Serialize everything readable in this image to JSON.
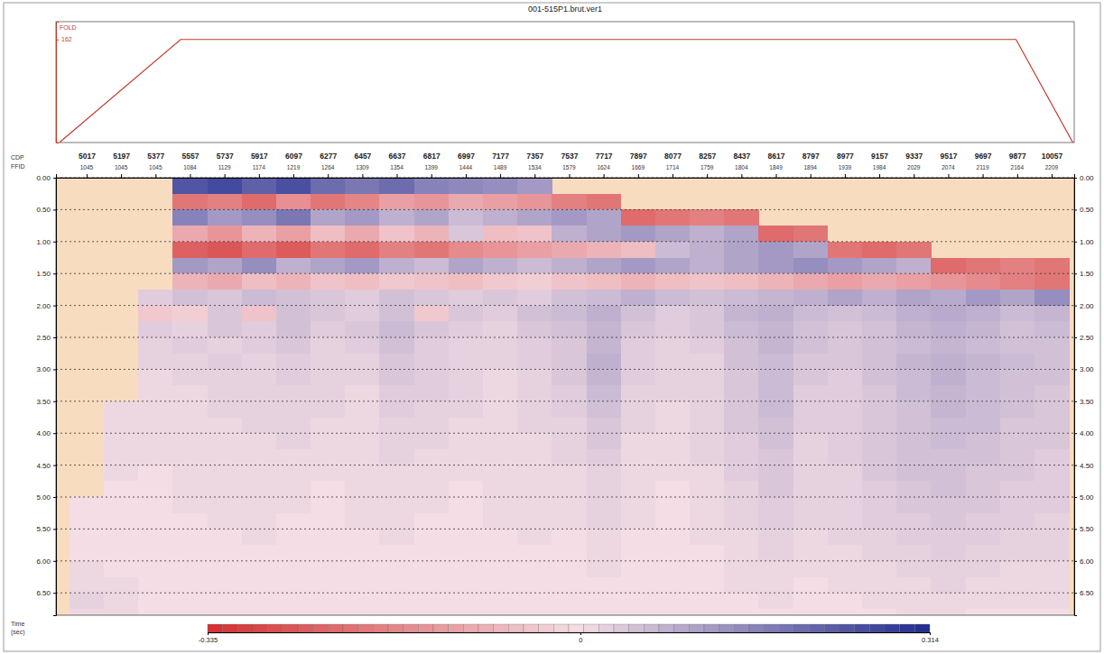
{
  "chart_data": [
    {
      "type": "line",
      "title": "001-515P1.brut.ver1",
      "y_label": "FOLD",
      "x": [
        4875,
        5508,
        9871,
        10168
      ],
      "values": [
        0,
        162,
        162,
        0
      ],
      "xlim": [
        4857,
        10175
      ],
      "ylim": [
        0,
        190
      ],
      "yticks": [
        162
      ],
      "color": "#c0392b",
      "tick_labels": "y"
    },
    {
      "type": "heatmap",
      "x_label": "CDP",
      "x2_label": "FFID",
      "y_label": "Time (sec)",
      "x": [
        5017,
        5197,
        5377,
        5557,
        5737,
        5917,
        6097,
        6277,
        6457,
        6637,
        6817,
        6997,
        7177,
        7357,
        7537,
        7717,
        7897,
        8077,
        8257,
        8437,
        8617,
        8797,
        8977,
        9157,
        9337,
        9517,
        9697,
        9877,
        10057
      ],
      "ffid": [
        1045,
        1045,
        1045,
        1084,
        1129,
        1174,
        1219,
        1264,
        1309,
        1354,
        1399,
        1444,
        1489,
        1534,
        1579,
        1624,
        1669,
        1714,
        1759,
        1804,
        1849,
        1894,
        1939,
        1984,
        2029,
        2074,
        2119,
        2164,
        2209
      ],
      "xlim": [
        4857,
        10175
      ],
      "xticks": [
        5017,
        5197,
        5377,
        5557,
        5737,
        5917,
        6097,
        6277,
        6457,
        6637,
        6817,
        6997,
        7177,
        7357,
        7537,
        7717,
        7897,
        8077,
        8257,
        8437,
        8617,
        8797,
        8977,
        9157,
        9337,
        9517,
        9697,
        9877,
        10057
      ],
      "y": [
        0.125,
        0.375,
        0.625,
        0.875,
        1.125,
        1.375,
        1.625,
        1.875,
        2.125,
        2.375,
        2.625,
        2.875,
        3.125,
        3.375,
        3.625,
        3.875,
        4.125,
        4.375,
        4.625,
        4.875,
        5.125,
        5.375,
        5.625,
        5.875,
        6.125,
        6.375,
        6.625,
        6.875
      ],
      "ylim": [
        0,
        6.85
      ],
      "yticks": [
        {
          "value": 0,
          "label": "0.00"
        },
        {
          "value": 0.5,
          "label": "0.50"
        },
        {
          "value": 1,
          "label": "1.00"
        },
        {
          "value": 1.5,
          "label": "1.50"
        },
        {
          "value": 2,
          "label": "2.00"
        },
        {
          "value": 2.5,
          "label": "2.50"
        },
        {
          "value": 3,
          "label": "3.00"
        },
        {
          "value": 3.5,
          "label": "3.50"
        },
        {
          "value": 4,
          "label": "4.00"
        },
        {
          "value": 4.5,
          "label": "4.50"
        },
        {
          "value": 5,
          "label": "5.00"
        },
        {
          "value": 5.5,
          "label": "5.50"
        },
        {
          "value": 6,
          "label": "6.00"
        },
        {
          "value": 6.5,
          "label": "6.50"
        }
      ],
      "grid": true,
      "values": [
        [
          null,
          null,
          null,
          0.24,
          0.26,
          0.22,
          0.25,
          0.2,
          0.18,
          0.2,
          0.16,
          0.15,
          0.14,
          0.12,
          null,
          null,
          null,
          null,
          null,
          null,
          null,
          null,
          null,
          null,
          null,
          null,
          null,
          null,
          null
        ],
        [
          null,
          null,
          null,
          -0.2,
          -0.18,
          -0.22,
          -0.15,
          -0.2,
          -0.17,
          -0.12,
          -0.14,
          -0.1,
          -0.12,
          -0.14,
          -0.18,
          -0.2,
          null,
          null,
          null,
          null,
          null,
          null,
          null,
          null,
          null,
          null,
          null,
          null,
          null
        ],
        [
          null,
          null,
          null,
          0.16,
          0.12,
          0.14,
          0.18,
          0.1,
          0.12,
          0.08,
          0.1,
          0.06,
          0.08,
          0.1,
          0.12,
          0.1,
          -0.22,
          -0.2,
          -0.18,
          -0.2,
          null,
          null,
          null,
          null,
          null,
          null,
          null,
          null,
          null
        ],
        [
          null,
          null,
          null,
          -0.1,
          -0.14,
          -0.08,
          -0.12,
          -0.06,
          -0.1,
          -0.05,
          -0.08,
          0.04,
          -0.06,
          -0.05,
          0.08,
          0.1,
          0.12,
          0.1,
          0.08,
          0.1,
          -0.22,
          -0.2,
          null,
          null,
          null,
          null,
          null,
          null,
          null
        ],
        [
          null,
          null,
          null,
          -0.24,
          -0.26,
          -0.22,
          -0.25,
          -0.2,
          -0.22,
          -0.18,
          -0.2,
          -0.16,
          -0.14,
          -0.12,
          -0.1,
          -0.08,
          -0.06,
          0.06,
          0.08,
          0.1,
          0.12,
          0.1,
          -0.2,
          -0.22,
          -0.2,
          null,
          null,
          null,
          null
        ],
        [
          null,
          null,
          null,
          0.12,
          0.1,
          0.14,
          0.08,
          0.1,
          0.12,
          0.08,
          0.06,
          0.1,
          0.08,
          0.06,
          0.08,
          0.1,
          0.12,
          0.1,
          0.08,
          0.1,
          0.12,
          0.14,
          0.12,
          0.1,
          0.08,
          -0.22,
          -0.2,
          -0.18,
          -0.2
        ],
        [
          null,
          null,
          null,
          -0.08,
          -0.1,
          -0.06,
          -0.08,
          -0.05,
          -0.06,
          -0.04,
          -0.05,
          -0.06,
          -0.04,
          -0.03,
          -0.05,
          -0.06,
          -0.08,
          -0.06,
          -0.05,
          -0.06,
          -0.08,
          -0.1,
          -0.12,
          -0.1,
          -0.12,
          -0.14,
          -0.16,
          -0.18,
          -0.2
        ],
        [
          null,
          null,
          0.03,
          0.05,
          0.04,
          0.06,
          0.05,
          0.04,
          0.03,
          0.05,
          0.04,
          0.03,
          0.04,
          0.03,
          0.05,
          0.06,
          0.08,
          0.06,
          0.05,
          0.06,
          0.07,
          0.08,
          0.1,
          0.08,
          0.1,
          0.09,
          0.12,
          0.1,
          0.14
        ],
        [
          null,
          null,
          -0.04,
          -0.03,
          0.04,
          -0.05,
          0.05,
          0.04,
          0.03,
          0.05,
          -0.04,
          0.04,
          0.03,
          0.05,
          0.06,
          0.08,
          0.05,
          0.03,
          0.04,
          0.07,
          0.08,
          0.06,
          0.05,
          0.06,
          0.08,
          0.09,
          0.08,
          0.06,
          0.07
        ],
        [
          null,
          null,
          0.03,
          0.02,
          0.04,
          0.03,
          0.05,
          0.03,
          0.04,
          0.06,
          0.04,
          0.03,
          0.02,
          0.04,
          0.05,
          0.07,
          0.04,
          0.03,
          0.04,
          0.06,
          0.07,
          0.05,
          0.04,
          0.05,
          0.07,
          0.08,
          0.07,
          0.05,
          0.06
        ],
        [
          null,
          null,
          0.02,
          0.03,
          0.02,
          0.03,
          0.04,
          0.02,
          0.03,
          0.05,
          0.03,
          0.02,
          0.02,
          0.03,
          0.04,
          0.07,
          0.03,
          0.02,
          0.03,
          0.05,
          0.07,
          0.05,
          0.04,
          0.05,
          0.06,
          0.07,
          0.06,
          0.05,
          0.05
        ],
        [
          null,
          null,
          0.02,
          0.02,
          0.03,
          0.02,
          0.03,
          0.02,
          0.02,
          0.04,
          0.03,
          0.02,
          0.02,
          0.03,
          0.04,
          0.08,
          0.03,
          0.02,
          0.02,
          0.05,
          0.06,
          0.04,
          0.04,
          0.05,
          0.07,
          0.08,
          0.07,
          0.06,
          0.05
        ],
        [
          null,
          null,
          0.01,
          0.02,
          0.02,
          0.02,
          0.03,
          0.02,
          0.02,
          0.04,
          0.03,
          0.02,
          0.01,
          0.02,
          0.04,
          0.07,
          0.03,
          0.02,
          0.02,
          0.04,
          0.06,
          0.04,
          0.03,
          0.05,
          0.06,
          0.08,
          0.06,
          0.05,
          0.05
        ],
        [
          null,
          null,
          0.01,
          0.01,
          0.02,
          0.02,
          0.02,
          0.02,
          0.01,
          0.03,
          0.03,
          0.02,
          0.01,
          0.02,
          0.03,
          0.06,
          0.02,
          0.02,
          0.02,
          0.04,
          0.06,
          0.03,
          0.03,
          0.04,
          0.06,
          0.07,
          0.06,
          0.05,
          0.04
        ],
        [
          null,
          0.01,
          0.01,
          0.01,
          0.02,
          0.02,
          0.02,
          0.02,
          0.01,
          0.03,
          0.02,
          0.02,
          0.01,
          0.02,
          0.03,
          0.05,
          0.02,
          0.01,
          0.02,
          0.04,
          0.06,
          0.03,
          0.03,
          0.04,
          0.05,
          0.07,
          0.06,
          0.05,
          0.04
        ],
        [
          null,
          0.01,
          0.01,
          0.01,
          0.01,
          0.02,
          0.02,
          0.01,
          0.01,
          0.02,
          0.02,
          0.01,
          0.01,
          0.02,
          0.02,
          0.04,
          0.02,
          0.01,
          0.02,
          0.04,
          0.05,
          0.03,
          0.03,
          0.04,
          0.05,
          0.06,
          0.06,
          0.04,
          0.04
        ],
        [
          null,
          0.01,
          0.01,
          0.01,
          0.01,
          0.01,
          0.02,
          0.01,
          0.01,
          0.02,
          0.02,
          0.01,
          0.01,
          0.01,
          0.02,
          0.04,
          0.01,
          0.01,
          0.02,
          0.03,
          0.05,
          0.02,
          0.03,
          0.04,
          0.05,
          0.06,
          0.05,
          0.04,
          0.04
        ],
        [
          null,
          0.01,
          0.01,
          0.01,
          0.01,
          0.01,
          0.01,
          0.01,
          0.01,
          0.02,
          0.01,
          0.01,
          0.01,
          0.01,
          0.02,
          0.03,
          0.01,
          0.01,
          0.02,
          0.03,
          0.04,
          0.02,
          0.03,
          0.04,
          0.05,
          0.05,
          0.05,
          0.04,
          0.03
        ],
        [
          null,
          0.01,
          0,
          0.01,
          0.01,
          0.01,
          0.01,
          0.01,
          0.01,
          0.01,
          0.01,
          0.01,
          0.01,
          0.01,
          0.01,
          0.02,
          0.01,
          0.01,
          0.01,
          0.03,
          0.04,
          0.02,
          0.02,
          0.04,
          0.05,
          0.05,
          0.04,
          0.04,
          0.03
        ],
        [
          null,
          0,
          0,
          0.01,
          0.01,
          0.01,
          0.01,
          0,
          0.01,
          0.01,
          0.01,
          0,
          0.01,
          0.01,
          0.01,
          0.02,
          0.01,
          0,
          0.01,
          0.02,
          0.04,
          0.02,
          0.02,
          0.03,
          0.04,
          0.05,
          0.04,
          0.03,
          0.03
        ],
        [
          0,
          0,
          0,
          0.01,
          0.01,
          0.01,
          0.01,
          0,
          0.01,
          0.01,
          0.01,
          0,
          0.01,
          0.01,
          0.01,
          0.02,
          0.01,
          0,
          0.01,
          0.02,
          0.03,
          0.02,
          0.02,
          0.03,
          0.04,
          0.04,
          0.04,
          0.03,
          0.03
        ],
        [
          0,
          0,
          0,
          0,
          0.01,
          0.01,
          0,
          0,
          0.01,
          0.01,
          0,
          0,
          0.01,
          0.01,
          0.01,
          0.02,
          0.01,
          0,
          0.01,
          0.02,
          0.03,
          0.02,
          0.02,
          0.03,
          0.03,
          0.04,
          0.03,
          0.03,
          0.02
        ],
        [
          0,
          0,
          0,
          0,
          0,
          0.01,
          0,
          0,
          0,
          0.01,
          0,
          0,
          0,
          0.01,
          0,
          0.01,
          0,
          0,
          0.01,
          0.01,
          0.02,
          0.01,
          0.02,
          0.02,
          0.03,
          0.03,
          0.03,
          0.02,
          0.02
        ],
        [
          0,
          0,
          0,
          0,
          0,
          0,
          0,
          0,
          0,
          0,
          0,
          0,
          0,
          0,
          0,
          0.01,
          0,
          0,
          0,
          0.01,
          0.02,
          0.01,
          0.01,
          0.02,
          0.02,
          0.03,
          0.02,
          0.02,
          0.02
        ],
        [
          0.01,
          0,
          0,
          0,
          0,
          0,
          0,
          0,
          0,
          0,
          0,
          0,
          0,
          0,
          0,
          0.01,
          0,
          0,
          0,
          0.01,
          0.01,
          0.01,
          0.01,
          0.01,
          0.02,
          0.02,
          0.02,
          0.01,
          0.01
        ],
        [
          0.01,
          0.01,
          0,
          0,
          0,
          0,
          0,
          0,
          0,
          0,
          0,
          0,
          0,
          0,
          0,
          0,
          0,
          0,
          0,
          0.01,
          0.01,
          0,
          0.01,
          0.01,
          0.01,
          0.02,
          0.01,
          0.01,
          0.01
        ],
        [
          0.02,
          0.01,
          0,
          0,
          0,
          0,
          0,
          0,
          0,
          0,
          0,
          0,
          0,
          0,
          0,
          0,
          0,
          0,
          0,
          0,
          0.01,
          0,
          0,
          0.01,
          0.01,
          0.01,
          0.01,
          0.01,
          0.01
        ],
        [
          0.01,
          0.01,
          0,
          0,
          0,
          0,
          0,
          0,
          0,
          0,
          0,
          0,
          0,
          0,
          0,
          0,
          0,
          0,
          0,
          0,
          0,
          0,
          0,
          0,
          0.01,
          0.01,
          0,
          0,
          0
        ]
      ],
      "colorbar": {
        "range": [
          -0.335,
          0.314
        ],
        "ticks": [
          -0.335,
          0,
          0.314
        ]
      }
    }
  ]
}
